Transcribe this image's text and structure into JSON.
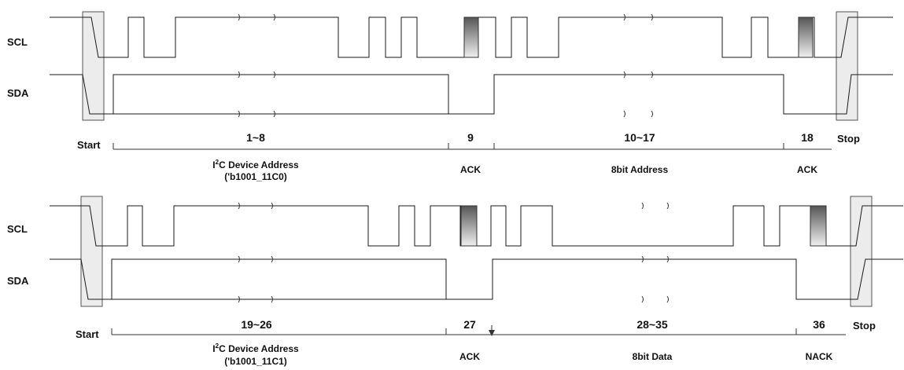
{
  "signals": {
    "scl_label": "SCL",
    "sda_label": "SDA"
  },
  "markers": {
    "start": "Start",
    "stop": "Stop"
  },
  "read_sequence": {
    "bit_ranges": [
      "1~8",
      "9",
      "10~17",
      "18"
    ],
    "device_address": {
      "prefix": "I",
      "superscript": "2",
      "suffix": "C Device Address",
      "value": "('b1001_11C0)"
    },
    "ack1": "ACK",
    "address_field": "8bit Address",
    "ack2": "ACK"
  },
  "data_sequence": {
    "bit_ranges": [
      "19~26",
      "27",
      "28~35",
      "36"
    ],
    "device_address": {
      "prefix": "I",
      "superscript": "2",
      "suffix": "C Device Address",
      "value": "('b1001_11C1)"
    },
    "ack": "ACK",
    "data_field": "8bit Data",
    "nack": "NACK"
  },
  "colors": {
    "line": "#1a1a1a",
    "start_stop_box": "#ececec",
    "ack_pulse_dark": "#555555",
    "ack_pulse_light": "#f0f0f0"
  }
}
